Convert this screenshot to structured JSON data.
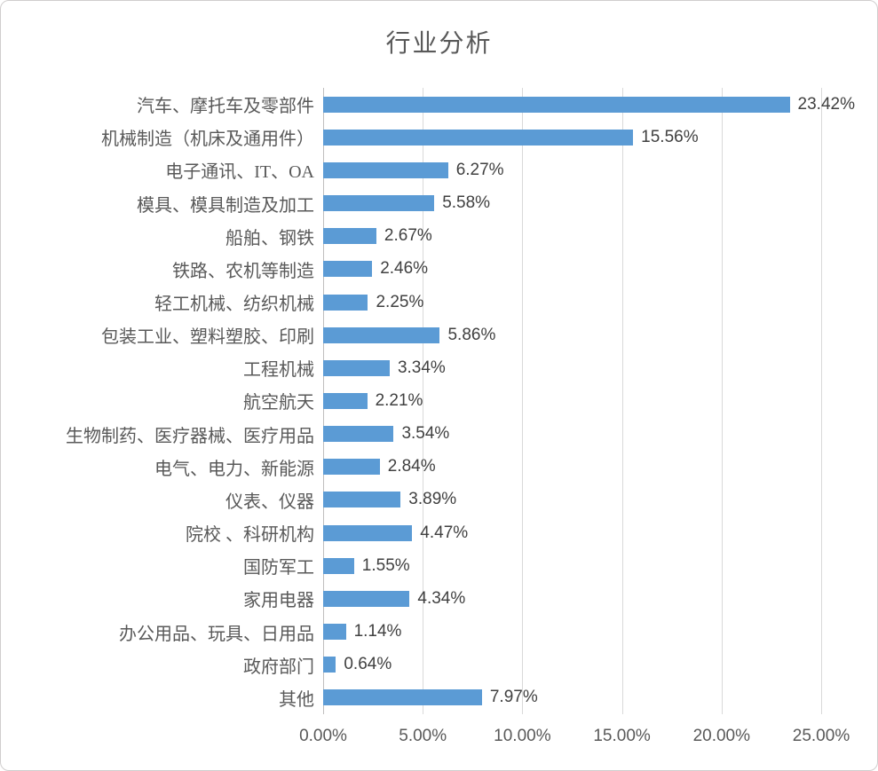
{
  "chart_data": {
    "type": "bar",
    "orientation": "horizontal",
    "title": "行业分析",
    "xlabel": "",
    "ylabel": "",
    "xlim": [
      0,
      25
    ],
    "grid": "vertical-gridlines-on",
    "legend_position": "none",
    "categories": [
      "汽车、摩托车及零部件",
      "机械制造（机床及通用件）",
      "电子通讯、IT、OA",
      "模具、模具制造及加工",
      "船舶、钢铁",
      "铁路、农机等制造",
      "轻工机械、纺织机械",
      "包装工业、塑料塑胶、印刷",
      "工程机械",
      "航空航天",
      "生物制药、医疗器械、医疗用品",
      "电气、电力、新能源",
      "仪表、仪器",
      "院校 、科研机构",
      "国防军工",
      "家用电器",
      "办公用品、玩具、日用品",
      "政府部门",
      "其他"
    ],
    "values": [
      23.42,
      15.56,
      6.27,
      5.58,
      2.67,
      2.46,
      2.25,
      5.86,
      3.34,
      2.21,
      3.54,
      2.84,
      3.89,
      4.47,
      1.55,
      4.34,
      1.14,
      0.64,
      7.97
    ],
    "data_labels": [
      "23.42%",
      "15.56%",
      "6.27%",
      "5.58%",
      "2.67%",
      "2.46%",
      "2.25%",
      "5.86%",
      "3.34%",
      "2.21%",
      "3.54%",
      "2.84%",
      "3.89%",
      "4.47%",
      "1.55%",
      "4.34%",
      "1.14%",
      "0.64%",
      "7.97%"
    ],
    "x_tick_values": [
      0,
      5,
      10,
      15,
      20,
      25
    ],
    "x_tick_labels": [
      "0.00%",
      "5.00%",
      "10.00%",
      "15.00%",
      "20.00%",
      "25.00%"
    ],
    "colors": {
      "bar": "#5b9bd5",
      "gridline": "#d9d9d9",
      "axis_line": "#c0bebe",
      "title_text": "#595959",
      "category_text": "#595959",
      "data_label_text": "#404040",
      "tick_text": "#595959",
      "frame_border": "#d0cece",
      "background": "#ffffff"
    }
  }
}
